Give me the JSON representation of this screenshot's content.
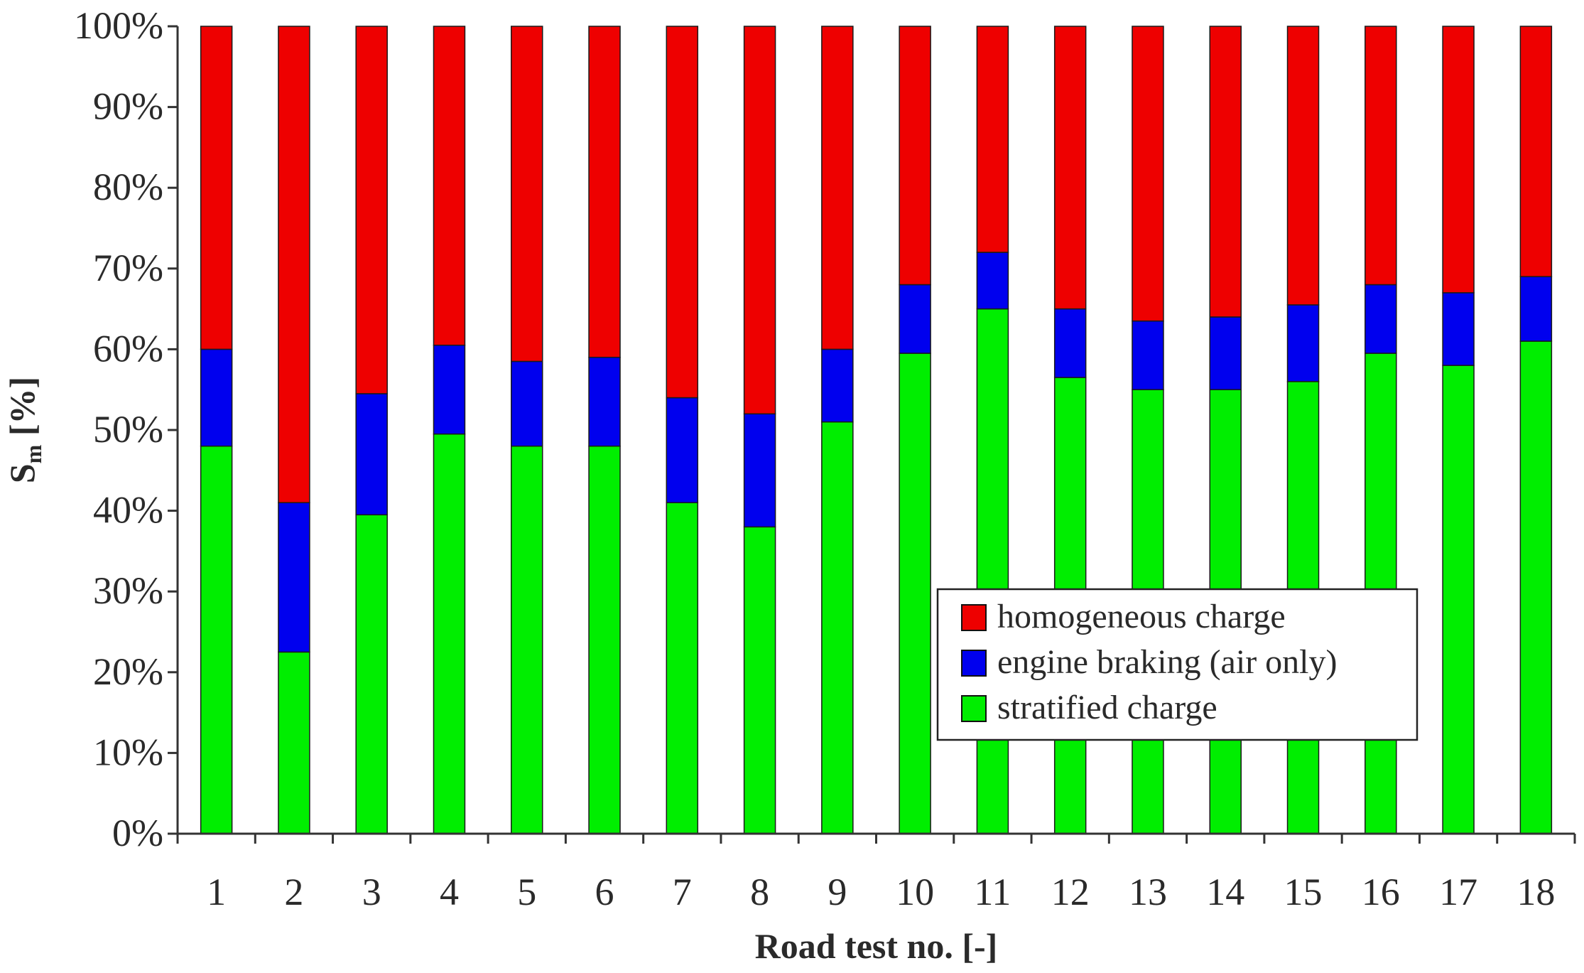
{
  "chart_data": {
    "type": "bar",
    "stacked": true,
    "percent": true,
    "title": "",
    "xlabel": "Road test no. [-]",
    "ylabel": "S",
    "ylabel_subscript": "m",
    "ylabel_suffix": " [%]",
    "ylim": [
      0,
      100
    ],
    "y_ticks": [
      "0%",
      "10%",
      "20%",
      "30%",
      "40%",
      "50%",
      "60%",
      "70%",
      "80%",
      "90%",
      "100%"
    ],
    "grid": false,
    "legend_position": "lower-right",
    "categories": [
      "1",
      "2",
      "3",
      "4",
      "5",
      "6",
      "7",
      "8",
      "9",
      "10",
      "11",
      "12",
      "13",
      "14",
      "15",
      "16",
      "17",
      "18"
    ],
    "series": [
      {
        "name": "stratified charge",
        "color": "#00ee00",
        "values": [
          48,
          22.5,
          39.5,
          49.5,
          48,
          48,
          41,
          38,
          51,
          59.5,
          65,
          56.5,
          55,
          55,
          56,
          59.5,
          58,
          61
        ]
      },
      {
        "name": "engine braking (air only)",
        "color": "#0000ee",
        "values": [
          12,
          18.5,
          15,
          11,
          10.5,
          11,
          13,
          14,
          9,
          8.5,
          7,
          8.5,
          8.5,
          9,
          9.5,
          8.5,
          9,
          8
        ]
      },
      {
        "name": "homogeneous charge",
        "color": "#ee0000",
        "values": [
          40,
          59,
          45.5,
          39.5,
          41.5,
          41,
          46,
          48,
          40,
          32,
          28,
          35,
          36.5,
          36,
          34.5,
          32,
          33,
          31
        ]
      }
    ],
    "legend_order": [
      "homogeneous charge",
      "engine braking (air only)",
      "stratified charge"
    ]
  }
}
